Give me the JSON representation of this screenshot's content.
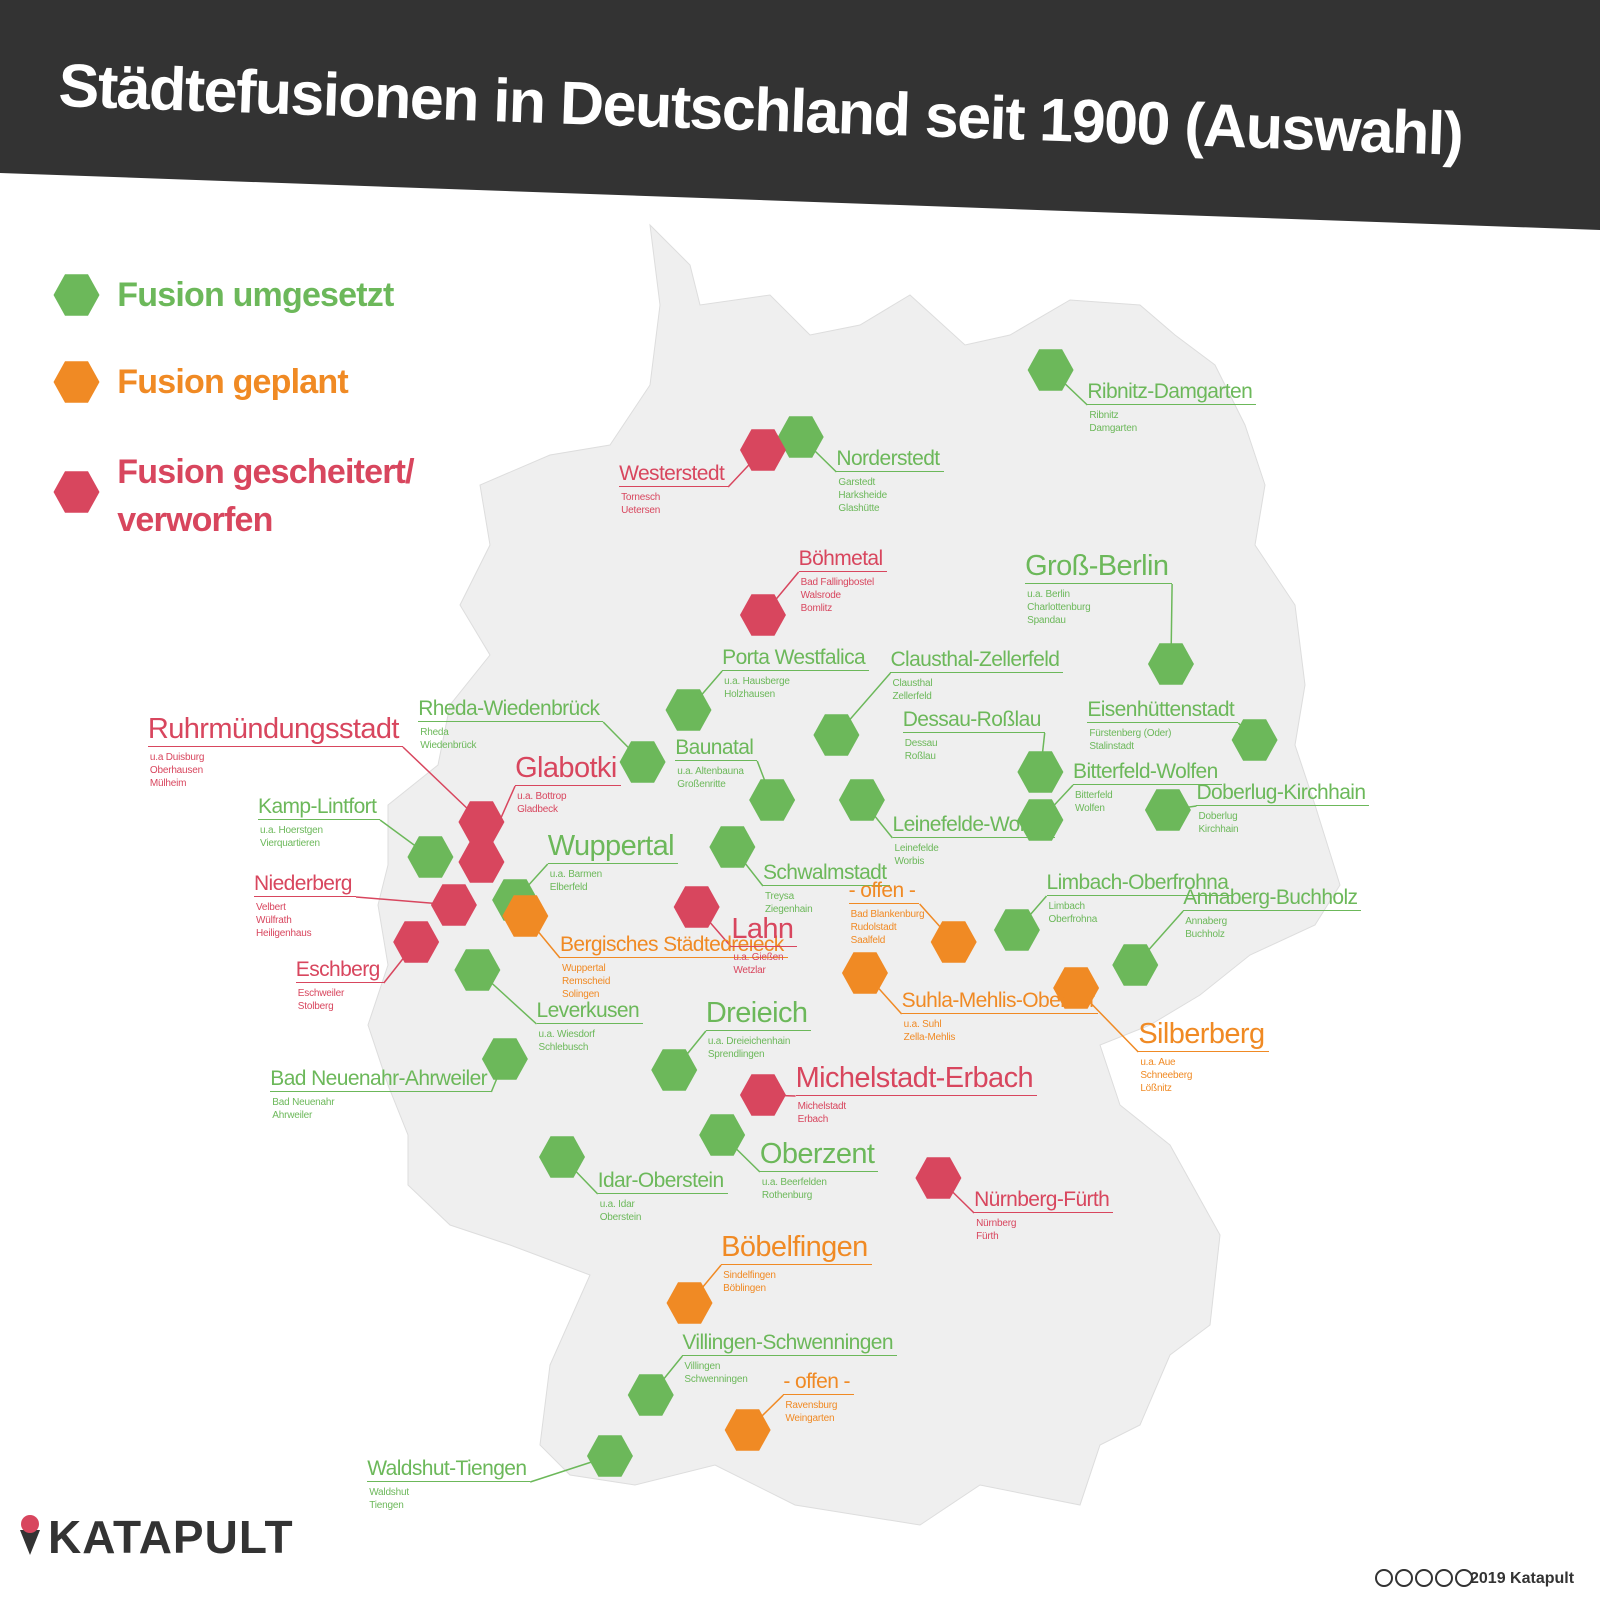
{
  "header": {
    "title": "Städtefusionen in Deutschland seit 1900 (Auswahl)"
  },
  "groups": [
    {
      "label": "Fusion umgesetzt",
      "color": "#6cb85a",
      "places": [
        {
          "name": "Ribnitz-Damgarten",
          "details": [
            "Ribnitz",
            "Damgarten"
          ]
        },
        {
          "name": "Norderstedt",
          "details": [
            "Garstedt",
            "Harksheide",
            "Glashütte"
          ]
        },
        {
          "name": "Groß-Berlin",
          "details": [
            "u.a. Berlin",
            "Charlottenburg",
            "Spandau"
          ]
        },
        {
          "name": "Porta Westfalica",
          "details": [
            "u.a. Hausberge",
            "Holzhausen"
          ]
        },
        {
          "name": "Clausthal-Zellerfeld",
          "details": [
            "Clausthal",
            "Zellerfeld"
          ]
        },
        {
          "name": "Rheda-Wiedenbrück",
          "details": [
            "Rheda",
            "Wiedenbrück"
          ]
        },
        {
          "name": "Eisenhüttenstadt",
          "details": [
            "Fürstenberg (Oder)",
            "Stalinstadt"
          ]
        },
        {
          "name": "Dessau-Roßlau",
          "details": [
            "Dessau",
            "Roßlau"
          ]
        },
        {
          "name": "Baunatal",
          "details": [
            "u.a. Altenbauna",
            "Großenritte"
          ]
        },
        {
          "name": "Bitterfeld-Wolfen",
          "details": [
            "Bitterfeld",
            "Wolfen"
          ]
        },
        {
          "name": "Leinefelde-Worbis",
          "details": [
            "Leinefelde",
            "Worbis"
          ]
        },
        {
          "name": "Doberlug-Kirchhain",
          "details": [
            "Doberlug",
            "Kirchhain"
          ]
        },
        {
          "name": "Kamp-Lintfort",
          "details": [
            "u.a. Hoerstgen",
            "Vierquartieren"
          ]
        },
        {
          "name": "Wuppertal",
          "details": [
            "u.a. Barmen",
            "Elberfeld"
          ]
        },
        {
          "name": "Schwalmstadt",
          "details": [
            "Treysa",
            "Ziegenhain"
          ]
        },
        {
          "name": "Limbach-Oberfrohna",
          "details": [
            "Limbach",
            "Oberfrohna"
          ]
        },
        {
          "name": "Annaberg-Buchholz",
          "details": [
            "Annaberg",
            "Buchholz"
          ]
        },
        {
          "name": "Leverkusen",
          "details": [
            "u.a. Wiesdorf",
            "Schlebusch"
          ]
        },
        {
          "name": "Dreieich",
          "details": [
            "u.a. Dreieichenhain",
            "Sprendlingen"
          ]
        },
        {
          "name": "Bad Neuenahr-Ahrweiler",
          "details": [
            "Bad Neuenahr",
            "Ahrweiler"
          ]
        },
        {
          "name": "Oberzent",
          "details": [
            "u.a. Beerfelden",
            "Rothenburg"
          ]
        },
        {
          "name": "Idar-Oberstein",
          "details": [
            "u.a. Idar",
            "Oberstein"
          ]
        },
        {
          "name": "Villingen-Schwenningen",
          "details": [
            "Villingen",
            "Schwenningen"
          ]
        },
        {
          "name": "Waldshut-Tiengen",
          "details": [
            "Waldshut",
            "Tiengen"
          ]
        }
      ]
    },
    {
      "label": "Fusion geplant",
      "color": "#f08a24",
      "places": [
        {
          "name": "- offen -",
          "details": [
            "Bad Blankenburg",
            "Rudolstadt",
            "Saalfeld"
          ]
        },
        {
          "name": "Bergisches Städtedreieck",
          "details": [
            "Wuppertal",
            "Remscheid",
            "Solingen"
          ]
        },
        {
          "name": "Suhla-Mehlis-Oberhof",
          "details": [
            "u.a. Suhl",
            "Zella-Mehlis"
          ]
        },
        {
          "name": "Silberberg",
          "details": [
            "u.a. Aue",
            "Schneeberg",
            "Lößnitz"
          ]
        },
        {
          "name": "Böbelfingen",
          "details": [
            "Sindelfingen",
            "Böblingen"
          ]
        },
        {
          "name": "- offen -",
          "details": [
            "Ravensburg",
            "Weingarten"
          ]
        }
      ]
    },
    {
      "label": "Fusion gescheitert/ verworfen",
      "color": "#d8465e",
      "places": [
        {
          "name": "Westerstedt",
          "details": [
            "Tornesch",
            "Uetersen"
          ]
        },
        {
          "name": "Böhmetal",
          "details": [
            "Bad Fallingbostel",
            "Walsrode",
            "Bomlitz"
          ]
        },
        {
          "name": "Ruhrmündungsstadt",
          "details": [
            "u.a Duisburg",
            "Oberhausen",
            "Mülheim"
          ]
        },
        {
          "name": "Glabotki",
          "details": [
            "u.a. Bottrop",
            "Gladbeck"
          ]
        },
        {
          "name": "Niederberg",
          "details": [
            "Velbert",
            "Wülfrath",
            "Heiligenhaus"
          ]
        },
        {
          "name": "Eschberg",
          "details": [
            "Eschweiler",
            "Stolberg"
          ]
        },
        {
          "name": "Lahn",
          "details": [
            "u.a. Gießen",
            "Wetzlar"
          ]
        },
        {
          "name": "Michelstadt-Erbach",
          "details": [
            "Michelstadt",
            "Erbach"
          ]
        },
        {
          "name": "Nürnberg-Fürth",
          "details": [
            "Nürnberg",
            "Fürth"
          ]
        }
      ]
    }
  ],
  "footer": {
    "logo": "KATAPULT",
    "copyright": "2019 Katapult"
  }
}
